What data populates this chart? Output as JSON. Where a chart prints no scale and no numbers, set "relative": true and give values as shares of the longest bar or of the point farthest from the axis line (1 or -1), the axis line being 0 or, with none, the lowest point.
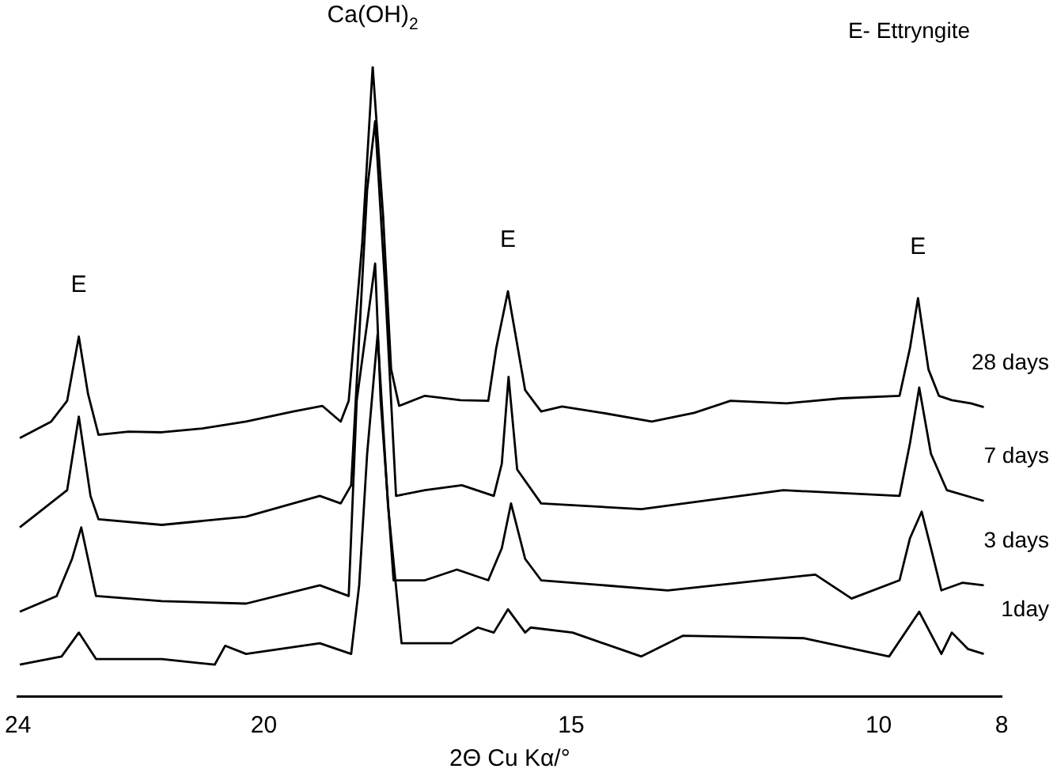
{
  "chart_data": {
    "type": "line",
    "relative": true,
    "xlabel": "2Θ Cu Kα/°",
    "xlim": [
      24,
      8
    ],
    "xticks": [
      24,
      20,
      15,
      10,
      8
    ],
    "grid": false,
    "legend": false,
    "marker": "none",
    "line_style": "solid",
    "annotations": [
      {
        "text": "E",
        "x": 23.01,
        "y": 0.571
      },
      {
        "text": "Ca(OH)$_{2}$",
        "x": 18.23,
        "y": 1.0
      },
      {
        "text": "E",
        "x": 16.03,
        "y": 0.643
      },
      {
        "text": "E",
        "x": 9.36,
        "y": 0.632
      },
      "E- Ettryngite"
    ],
    "series": [
      {
        "name": "28 days",
        "color": "#000000",
        "x": [
          23.97,
          23.46,
          23.2,
          23.01,
          22.86,
          22.69,
          22.2,
          21.66,
          21.0,
          20.29,
          19.52,
          19.05,
          18.75,
          18.62,
          18.4,
          18.23,
          18.06,
          17.93,
          17.8,
          17.38,
          16.8,
          16.35,
          16.22,
          16.03,
          15.75,
          15.49,
          15.15,
          14.5,
          13.69,
          13.0,
          12.41,
          11.5,
          10.61,
          9.66,
          9.49,
          9.36,
          9.19,
          9.02,
          8.81,
          8.5,
          8.29
        ],
        "values": [
          0.41,
          0.436,
          0.469,
          0.571,
          0.48,
          0.415,
          0.42,
          0.419,
          0.425,
          0.436,
          0.452,
          0.461,
          0.436,
          0.469,
          0.72,
          1.0,
          0.762,
          0.519,
          0.461,
          0.477,
          0.47,
          0.469,
          0.553,
          0.643,
          0.486,
          0.452,
          0.46,
          0.45,
          0.436,
          0.45,
          0.469,
          0.465,
          0.473,
          0.477,
          0.553,
          0.632,
          0.519,
          0.477,
          0.47,
          0.465,
          0.459
        ]
      },
      {
        "name": "7 days",
        "color": "#000000",
        "x": [
          23.97,
          23.2,
          23.01,
          22.82,
          22.69,
          21.66,
          20.29,
          19.09,
          18.75,
          18.58,
          18.32,
          18.19,
          18.02,
          17.85,
          17.38,
          16.78,
          16.26,
          16.13,
          16.02,
          15.88,
          15.49,
          13.86,
          11.55,
          9.66,
          9.49,
          9.34,
          9.15,
          8.89,
          8.29
        ],
        "values": [
          0.268,
          0.327,
          0.444,
          0.318,
          0.281,
          0.272,
          0.285,
          0.318,
          0.306,
          0.335,
          0.804,
          0.913,
          0.637,
          0.318,
          0.327,
          0.335,
          0.318,
          0.369,
          0.507,
          0.36,
          0.306,
          0.297,
          0.327,
          0.318,
          0.402,
          0.49,
          0.385,
          0.327,
          0.31
        ]
      },
      {
        "name": "3 days",
        "color": "#000000",
        "x": [
          23.97,
          23.37,
          23.12,
          22.97,
          22.73,
          21.66,
          20.29,
          19.09,
          18.62,
          18.49,
          18.19,
          18.1,
          17.89,
          17.38,
          16.86,
          16.35,
          16.13,
          15.98,
          15.75,
          15.49,
          13.43,
          11.03,
          10.44,
          9.66,
          9.49,
          9.3,
          9.15,
          8.98,
          8.64,
          8.29
        ],
        "values": [
          0.134,
          0.159,
          0.218,
          0.268,
          0.159,
          0.151,
          0.147,
          0.176,
          0.159,
          0.469,
          0.687,
          0.469,
          0.184,
          0.184,
          0.201,
          0.184,
          0.235,
          0.306,
          0.218,
          0.184,
          0.168,
          0.193,
          0.155,
          0.184,
          0.251,
          0.293,
          0.235,
          0.168,
          0.18,
          0.176
        ]
      },
      {
        "name": "1day",
        "color": "#000000",
        "x": [
          23.97,
          23.29,
          23.01,
          22.73,
          21.66,
          20.8,
          20.63,
          20.29,
          19.09,
          18.58,
          18.45,
          18.32,
          18.15,
          17.98,
          17.76,
          17.38,
          16.95,
          16.52,
          16.26,
          16.03,
          15.75,
          15.66,
          14.98,
          13.86,
          13.18,
          11.21,
          9.83,
          9.34,
          8.98,
          8.81,
          8.55,
          8.29
        ],
        "values": [
          0.05,
          0.063,
          0.101,
          0.059,
          0.059,
          0.05,
          0.08,
          0.067,
          0.084,
          0.067,
          0.176,
          0.385,
          0.574,
          0.302,
          0.084,
          0.084,
          0.084,
          0.109,
          0.101,
          0.138,
          0.101,
          0.109,
          0.101,
          0.063,
          0.096,
          0.092,
          0.063,
          0.134,
          0.067,
          0.101,
          0.075,
          0.067
        ]
      }
    ]
  }
}
